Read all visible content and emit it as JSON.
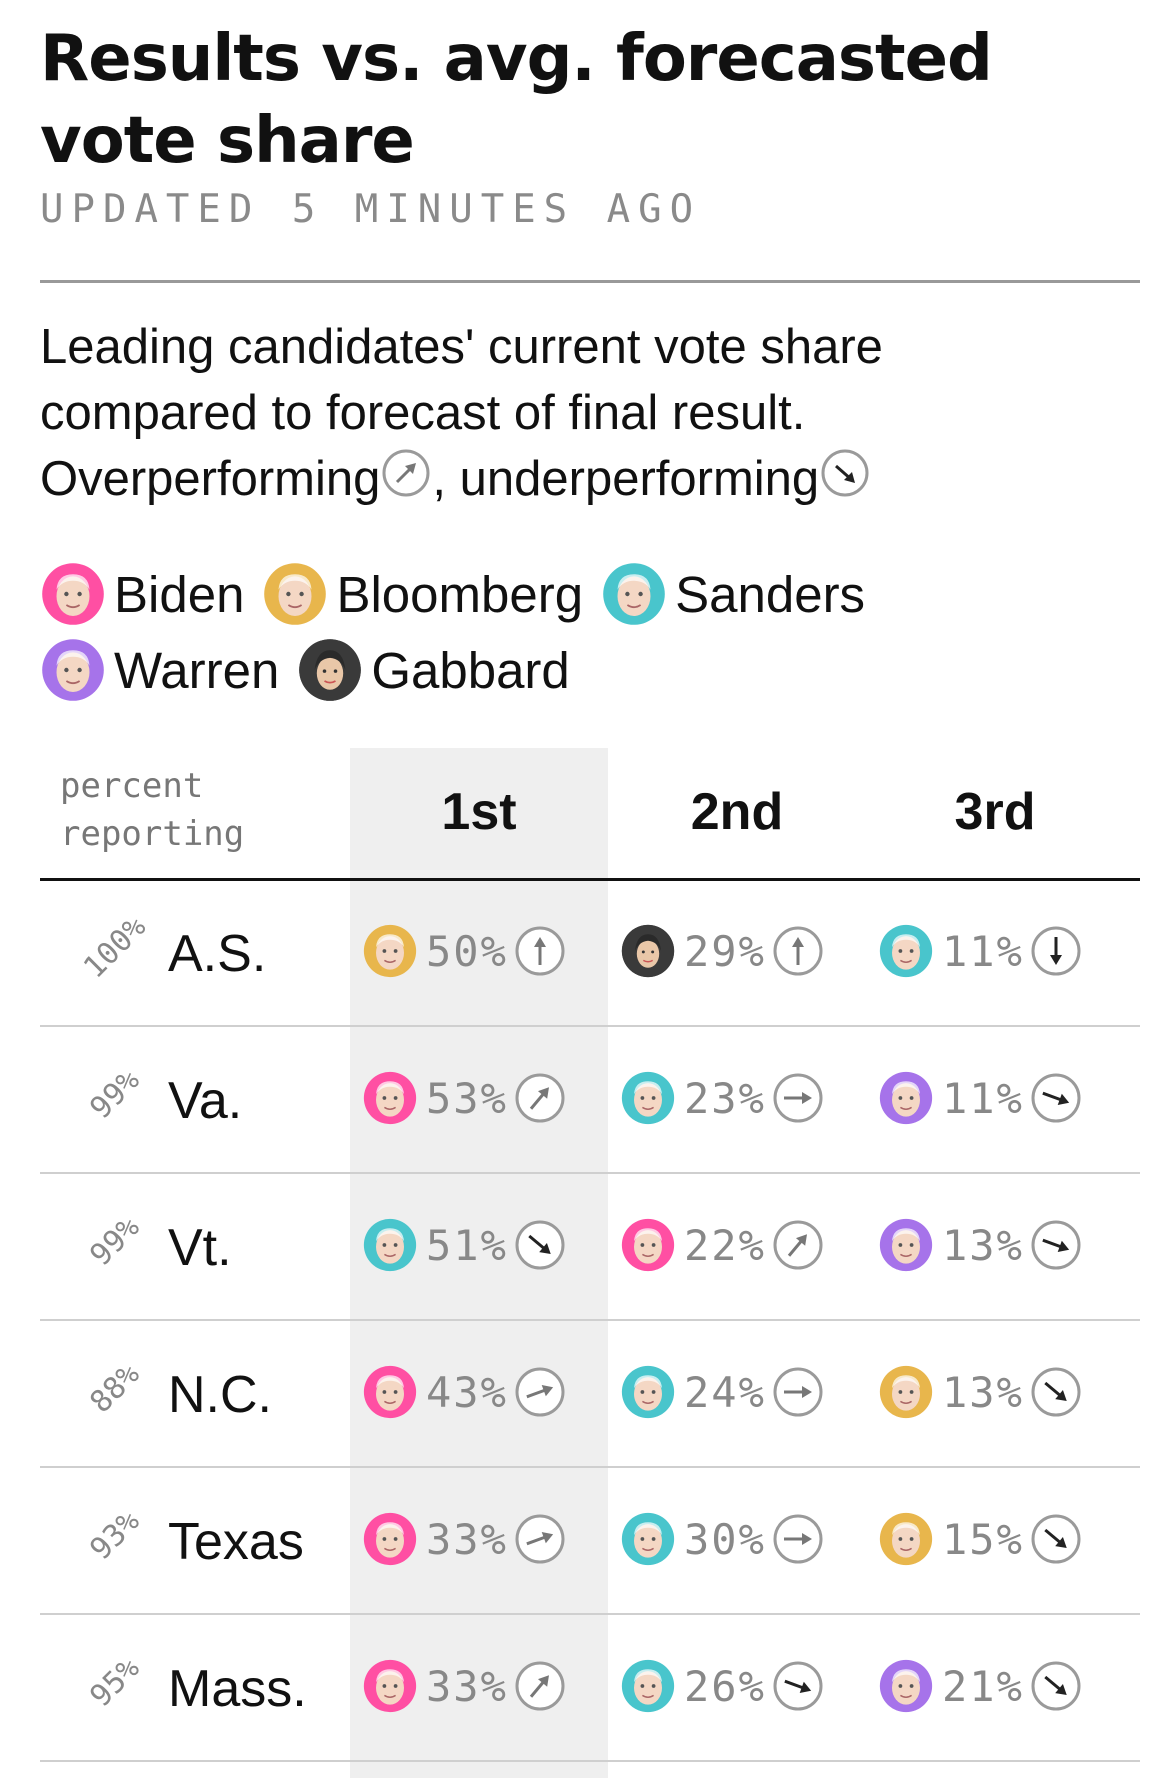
{
  "title_line1": "Results vs. avg. forecasted",
  "title_line2": "vote share",
  "updated": "UPDATED 5 MINUTES AGO",
  "description": {
    "line1": "Leading candidates' current vote share",
    "line2": "compared to forecast of final result.",
    "over_label": "Overperforming",
    "sep": ", ",
    "under_label": "underperforming"
  },
  "legend": [
    {
      "name": "Biden",
      "color": "#ff4fa3"
    },
    {
      "name": "Bloomberg",
      "color": "#e8b64c"
    },
    {
      "name": "Sanders",
      "color": "#49c5cc"
    },
    {
      "name": "Warren",
      "color": "#a673ea"
    },
    {
      "name": "Gabbard",
      "color": "#3a3a3a"
    }
  ],
  "table": {
    "pct_label_line1": "percent",
    "pct_label_line2": "reporting",
    "ranks": [
      "1st",
      "2nd",
      "3rd"
    ],
    "rows": [
      {
        "state": "A.S.",
        "pct": "100%",
        "cells": [
          {
            "candidate": "Bloomberg",
            "value": "50%",
            "trend": "up"
          },
          {
            "candidate": "Gabbard",
            "value": "29%",
            "trend": "up"
          },
          {
            "candidate": "Sanders",
            "value": "11%",
            "trend": "down"
          }
        ]
      },
      {
        "state": "Va.",
        "pct": "99%",
        "cells": [
          {
            "candidate": "Biden",
            "value": "53%",
            "trend": "up-right"
          },
          {
            "candidate": "Sanders",
            "value": "23%",
            "trend": "right"
          },
          {
            "candidate": "Warren",
            "value": "11%",
            "trend": "slight-down"
          }
        ]
      },
      {
        "state": "Vt.",
        "pct": "99%",
        "cells": [
          {
            "candidate": "Sanders",
            "value": "51%",
            "trend": "down-right"
          },
          {
            "candidate": "Biden",
            "value": "22%",
            "trend": "up-right"
          },
          {
            "candidate": "Warren",
            "value": "13%",
            "trend": "slight-down"
          }
        ]
      },
      {
        "state": "N.C.",
        "pct": "88%",
        "cells": [
          {
            "candidate": "Biden",
            "value": "43%",
            "trend": "slight-up"
          },
          {
            "candidate": "Sanders",
            "value": "24%",
            "trend": "right"
          },
          {
            "candidate": "Bloomberg",
            "value": "13%",
            "trend": "down-right"
          }
        ]
      },
      {
        "state": "Texas",
        "pct": "93%",
        "cells": [
          {
            "candidate": "Biden",
            "value": "33%",
            "trend": "slight-up"
          },
          {
            "candidate": "Sanders",
            "value": "30%",
            "trend": "right"
          },
          {
            "candidate": "Bloomberg",
            "value": "15%",
            "trend": "down-right"
          }
        ]
      },
      {
        "state": "Mass.",
        "pct": "95%",
        "cells": [
          {
            "candidate": "Biden",
            "value": "33%",
            "trend": "up-right"
          },
          {
            "candidate": "Sanders",
            "value": "26%",
            "trend": "slight-down"
          },
          {
            "candidate": "Warren",
            "value": "21%",
            "trend": "down-right"
          }
        ]
      }
    ]
  }
}
